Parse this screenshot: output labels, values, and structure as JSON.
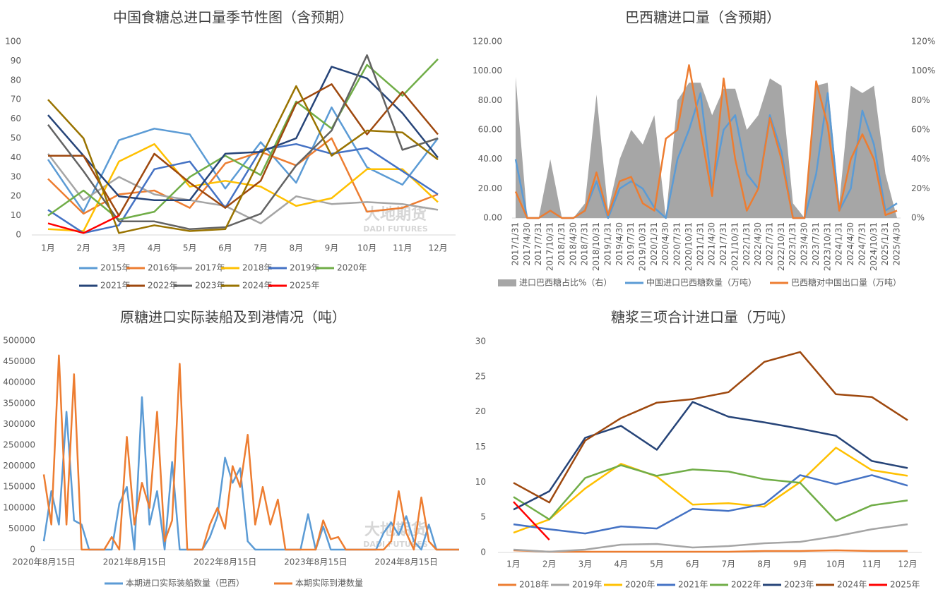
{
  "chart_data": [
    {
      "type": "line",
      "title": "中国食糖总进口量季节性图（含预期）",
      "watermark": "大地期货",
      "watermark_en": "DADI FUTURES",
      "categories": [
        "1月",
        "2月",
        "3月",
        "4月",
        "5月",
        "6月",
        "7月",
        "8月",
        "9月",
        "10月",
        "11月",
        "12月"
      ],
      "ylim": [
        0,
        100
      ],
      "yticks": [
        0,
        10,
        20,
        30,
        40,
        50,
        60,
        70,
        80,
        90,
        100
      ],
      "grid": false,
      "series": [
        {
          "name": "2015年",
          "color": "#5b9bd5",
          "values": [
            39,
            12,
            49,
            55,
            52,
            24,
            48,
            27,
            66,
            35,
            26,
            50
          ]
        },
        {
          "name": "2016年",
          "color": "#ed7d31",
          "values": [
            29,
            11,
            21,
            23,
            14,
            37,
            43,
            36,
            50,
            12,
            14,
            21
          ]
        },
        {
          "name": "2017年",
          "color": "#a5a5a5",
          "values": [
            42,
            18,
            30,
            21,
            18,
            15,
            6,
            20,
            16,
            17,
            16,
            13
          ]
        },
        {
          "name": "2018年",
          "color": "#ffc000",
          "values": [
            3,
            2,
            38,
            47,
            25,
            28,
            25,
            15,
            19,
            34,
            34,
            17
          ]
        },
        {
          "name": "2019年",
          "color": "#4472c4",
          "values": [
            13,
            1,
            5,
            34,
            38,
            14,
            44,
            47,
            42,
            45,
            33,
            21
          ]
        },
        {
          "name": "2020年",
          "color": "#70ad47",
          "values": [
            10,
            23,
            8,
            12,
            30,
            41,
            31,
            69,
            55,
            88,
            72,
            91
          ]
        },
        {
          "name": "2021年",
          "color": "#264478",
          "values": [
            62,
            41,
            20,
            18,
            18,
            42,
            43,
            50,
            87,
            81,
            63,
            40
          ]
        },
        {
          "name": "2022年",
          "color": "#9e480e",
          "values": [
            41,
            41,
            10,
            42,
            27,
            14,
            28,
            68,
            78,
            52,
            74,
            52
          ]
        },
        {
          "name": "2023年",
          "color": "#636363",
          "values": [
            57,
            33,
            7,
            7,
            3,
            4,
            11,
            36,
            54,
            93,
            44,
            50
          ]
        },
        {
          "name": "2024年",
          "color": "#997300",
          "values": [
            70,
            50,
            1,
            5,
            2,
            3,
            40,
            77,
            41,
            54,
            53,
            39
          ]
        },
        {
          "name": "2025年",
          "color": "#ff0000",
          "values": [
            6,
            1,
            10,
            null,
            null,
            null,
            null,
            null,
            null,
            null,
            null,
            null
          ]
        }
      ]
    },
    {
      "type": "line",
      "title": "巴西糖进口量（含预期）",
      "categories": [
        "2017/1/31",
        "2017/4/30",
        "2017/7/31",
        "2017/10/31",
        "2018/1/31",
        "2018/4/30",
        "2018/7/31",
        "2018/10/31",
        "2019/1/31",
        "2019/4/30",
        "2019/7/31",
        "2019/10/31",
        "2020/1/31",
        "2020/4/30",
        "2020/7/31",
        "2020/10/31",
        "2021/1/31",
        "2021/4/30",
        "2021/7/31",
        "2021/10/31",
        "2022/1/31",
        "2022/4/30",
        "2022/7/31",
        "2022/10/31",
        "2023/1/31",
        "2023/4/30",
        "2023/7/31",
        "2023/10/31",
        "2024/1/31",
        "2024/4/30",
        "2024/7/31",
        "2024/10/31",
        "2025/1/31",
        "2025/4/30"
      ],
      "ylim": [
        0,
        120
      ],
      "yticks": [
        {
          "value": 0,
          "label": "0.00"
        },
        {
          "value": 20,
          "label": "20.00"
        },
        {
          "value": 40,
          "label": "40.00"
        },
        {
          "value": 60,
          "label": "60.00"
        },
        {
          "value": 80,
          "label": "80.00"
        },
        {
          "value": 100,
          "label": "100.00"
        },
        {
          "value": 120,
          "label": "120.00"
        }
      ],
      "y2lim": [
        0,
        120
      ],
      "y2ticks": [
        {
          "value": 0,
          "label": "0%"
        },
        {
          "value": 20,
          "label": "20%"
        },
        {
          "value": 40,
          "label": "40%"
        },
        {
          "value": 60,
          "label": "60%"
        },
        {
          "value": 80,
          "label": "80%"
        },
        {
          "value": 100,
          "label": "100%"
        },
        {
          "value": 120,
          "label": "120%"
        }
      ],
      "grid": false,
      "series": [
        {
          "name": "进口巴西糖占比%（右）",
          "color": "#a6a6a6",
          "type": "area",
          "axis": "y2",
          "values": [
            96,
            0,
            0,
            40,
            0,
            0,
            10,
            84,
            5,
            40,
            60,
            50,
            70,
            0,
            80,
            92,
            92,
            70,
            88,
            88,
            60,
            70,
            95,
            90,
            10,
            0,
            90,
            92,
            10,
            90,
            85,
            90,
            30,
            0
          ]
        },
        {
          "name": "中国进口巴西糖数量（万吨）",
          "color": "#5b9bd5",
          "values": [
            40,
            0,
            0,
            5,
            0,
            0,
            5,
            25,
            0,
            20,
            25,
            20,
            7,
            0,
            40,
            60,
            85,
            20,
            60,
            70,
            30,
            20,
            70,
            45,
            0,
            0,
            30,
            85,
            5,
            20,
            73,
            50,
            5,
            10
          ]
        },
        {
          "name": "巴西糖对中国出口量（万吨）",
          "color": "#ed7d31",
          "values": [
            18,
            0,
            0,
            5,
            0,
            0,
            5,
            31,
            2,
            25,
            28,
            10,
            5,
            54,
            60,
            104,
            60,
            15,
            95,
            40,
            5,
            20,
            68,
            40,
            0,
            0,
            93,
            63,
            5,
            40,
            57,
            40,
            2,
            5
          ]
        }
      ]
    },
    {
      "type": "line",
      "title": "原糖进口实际装船及到港情况（吨）",
      "watermark": "大地期货",
      "watermark_en": "DADI FUTURES",
      "categories": [
        "2020年8月15日",
        null,
        null,
        null,
        null,
        null,
        null,
        null,
        null,
        null,
        null,
        null,
        "2021年8月15日",
        null,
        null,
        null,
        null,
        null,
        null,
        null,
        null,
        null,
        null,
        null,
        "2022年8月15日",
        null,
        null,
        null,
        null,
        null,
        null,
        null,
        null,
        null,
        null,
        null,
        "2023年8月15日",
        null,
        null,
        null,
        null,
        null,
        null,
        null,
        null,
        null,
        null,
        null,
        "2024年8月15日",
        null,
        null,
        null,
        null,
        null,
        null,
        null
      ],
      "ylim": [
        0,
        500000
      ],
      "yticks": [
        0,
        50000,
        100000,
        150000,
        200000,
        250000,
        300000,
        350000,
        400000,
        450000,
        500000
      ],
      "grid": false,
      "series": [
        {
          "name": "本期进口实际装船数量（巴西）",
          "color": "#5b9bd5",
          "values": [
            20000,
            140000,
            60000,
            330000,
            70000,
            60000,
            0,
            0,
            0,
            0,
            110000,
            150000,
            0,
            365000,
            60000,
            140000,
            0,
            210000,
            0,
            0,
            0,
            0,
            30000,
            80000,
            220000,
            160000,
            195000,
            20000,
            0,
            0,
            0,
            0,
            0,
            0,
            0,
            85000,
            0,
            55000,
            0,
            0,
            0,
            0,
            0,
            0,
            0,
            40000,
            65000,
            35000,
            80000,
            20000,
            0,
            60000,
            0,
            0,
            0,
            0
          ]
        },
        {
          "name": "本期实际到港数量",
          "color": "#ed7d31",
          "values": [
            180000,
            60000,
            465000,
            60000,
            420000,
            0,
            0,
            0,
            0,
            30000,
            0,
            270000,
            60000,
            160000,
            100000,
            330000,
            20000,
            70000,
            445000,
            0,
            0,
            0,
            60000,
            100000,
            50000,
            200000,
            150000,
            275000,
            60000,
            150000,
            60000,
            120000,
            0,
            0,
            0,
            0,
            0,
            70000,
            25000,
            30000,
            0,
            0,
            0,
            0,
            0,
            0,
            20000,
            140000,
            40000,
            0,
            125000,
            20000,
            0,
            0,
            0,
            0
          ]
        }
      ]
    },
    {
      "type": "line",
      "title": "糖浆三项合计进口量（万吨）",
      "categories": [
        "1月",
        "2月",
        "3月",
        "4月",
        "5月",
        "6月",
        "7月",
        "8月",
        "9月",
        "10月",
        "11月",
        "12月"
      ],
      "ylim": [
        0,
        30
      ],
      "yticks": [
        0,
        5,
        10,
        15,
        20,
        25,
        30
      ],
      "grid": false,
      "series": [
        {
          "name": "2018年",
          "color": "#ed7d31",
          "values": [
            0.3,
            0.1,
            0.1,
            0.1,
            0.1,
            0.1,
            0.1,
            0.2,
            0.2,
            0.3,
            0.2,
            0.2
          ]
        },
        {
          "name": "2019年",
          "color": "#a5a5a5",
          "values": [
            0.4,
            0.1,
            0.4,
            1.1,
            1.2,
            0.7,
            0.9,
            1.3,
            1.5,
            2.3,
            3.3,
            4.0
          ]
        },
        {
          "name": "2020年",
          "color": "#ffc000",
          "values": [
            2.8,
            4.7,
            9.1,
            12.6,
            10.8,
            6.8,
            7.0,
            6.5,
            10.0,
            14.9,
            11.7,
            10.9
          ]
        },
        {
          "name": "2021年",
          "color": "#4472c4",
          "values": [
            4.0,
            3.3,
            2.7,
            3.7,
            3.4,
            6.2,
            5.9,
            6.9,
            11.0,
            9.7,
            11.0,
            9.5
          ]
        },
        {
          "name": "2022年",
          "color": "#70ad47",
          "values": [
            7.9,
            4.7,
            10.6,
            12.4,
            10.9,
            11.8,
            11.5,
            10.4,
            9.9,
            4.5,
            6.7,
            7.4
          ]
        },
        {
          "name": "2023年",
          "color": "#264478",
          "values": [
            6.1,
            8.7,
            16.3,
            18.0,
            14.6,
            21.4,
            19.3,
            18.5,
            17.6,
            16.6,
            13.0,
            12.0
          ]
        },
        {
          "name": "2024年",
          "color": "#9e480e",
          "values": [
            9.9,
            7.1,
            15.9,
            19.1,
            21.3,
            21.8,
            22.8,
            27.1,
            28.5,
            22.5,
            22.1,
            18.8
          ]
        },
        {
          "name": "2025年",
          "color": "#ff0000",
          "values": [
            7.2,
            1.8,
            null,
            null,
            null,
            null,
            null,
            null,
            null,
            null,
            null,
            null
          ]
        }
      ]
    }
  ]
}
